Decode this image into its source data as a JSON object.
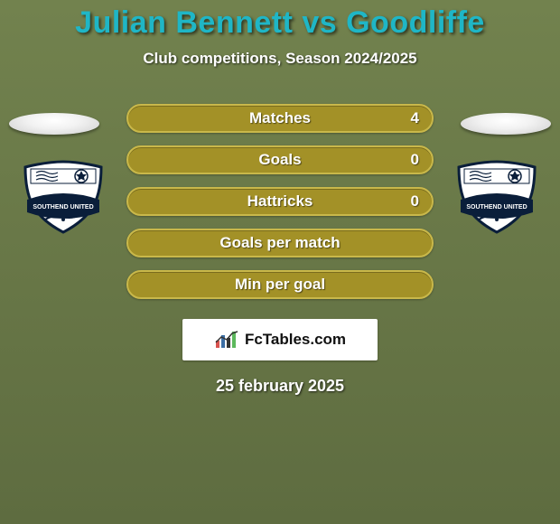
{
  "background_color": "#6a7a4a",
  "bg_gradient_top": "#72824e",
  "bg_gradient_bottom": "#5e6c40",
  "title": {
    "text": "Julian Bennett vs Goodliffe",
    "color": "#1fb6c6",
    "fontsize": 34
  },
  "subtitle": {
    "text": "Club competitions, Season 2024/2025",
    "fontsize": 17
  },
  "row_style": {
    "bg": "#a39127",
    "border": "#c9b84a",
    "label_fontsize": 17,
    "value_fontsize": 17
  },
  "stats": [
    {
      "label": "Matches",
      "right_value": "4"
    },
    {
      "label": "Goals",
      "right_value": "0"
    },
    {
      "label": "Hattricks",
      "right_value": "0"
    },
    {
      "label": "Goals per match",
      "right_value": ""
    },
    {
      "label": "Min per goal",
      "right_value": ""
    }
  ],
  "crest": {
    "shield_fill": "#ffffff",
    "shield_stroke": "#0a1e3a",
    "top_text": "SOUTHEND UNITED",
    "banner_fill": "#0a1e3a",
    "banner_text_color": "#ffffff",
    "accent": "#0a1e3a"
  },
  "fctables": {
    "text": "FcTables.com",
    "bar_colors": [
      "#d9534f",
      "#3b6ea5",
      "#333333",
      "#5cb85c"
    ]
  },
  "date": {
    "text": "25 february 2025",
    "fontsize": 18
  }
}
